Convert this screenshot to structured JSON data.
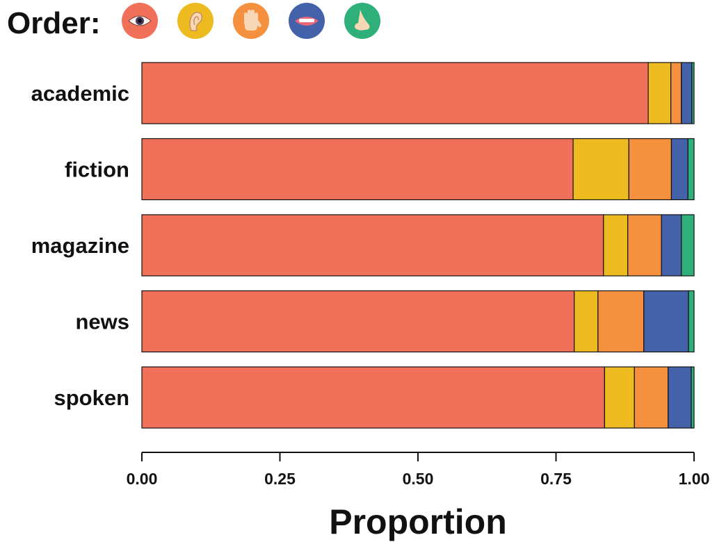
{
  "legend": {
    "title": "Order:",
    "icons": [
      {
        "name": "eye-icon",
        "color": "#F0705A"
      },
      {
        "name": "ear-icon",
        "color": "#EDBB20"
      },
      {
        "name": "hand-icon",
        "color": "#F5903E"
      },
      {
        "name": "mouth-icon",
        "color": "#4462AA"
      },
      {
        "name": "nose-icon",
        "color": "#2FB07A"
      }
    ]
  },
  "chart_data": {
    "type": "bar",
    "orientation": "horizontal",
    "stacked": true,
    "categories": [
      "academic",
      "fiction",
      "magazine",
      "news",
      "spoken"
    ],
    "series": [
      {
        "color": "#F0705A",
        "values": [
          0.917,
          0.781,
          0.836,
          0.783,
          0.838
        ]
      },
      {
        "color": "#EDBB20",
        "values": [
          0.041,
          0.101,
          0.044,
          0.043,
          0.054
        ]
      },
      {
        "color": "#F5903E",
        "values": [
          0.019,
          0.077,
          0.061,
          0.083,
          0.061
        ]
      },
      {
        "color": "#4462AA",
        "values": [
          0.019,
          0.03,
          0.036,
          0.081,
          0.042
        ]
      },
      {
        "color": "#2FB07A",
        "values": [
          0.004,
          0.011,
          0.023,
          0.01,
          0.005
        ]
      }
    ],
    "xlim": [
      0,
      1
    ],
    "xticks": [
      "0.00",
      "0.25",
      "0.50",
      "0.75",
      "1.00"
    ],
    "xlabel": "Proportion",
    "ylabel": "",
    "grid": false,
    "legend_position": "top-left"
  }
}
